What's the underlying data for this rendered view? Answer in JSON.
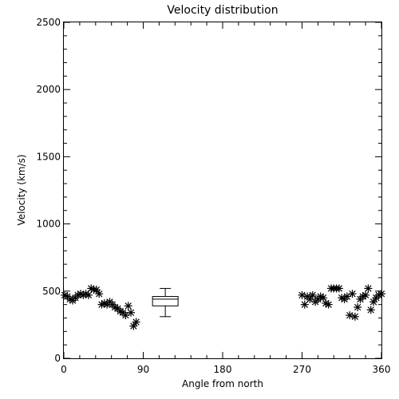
{
  "chart_data": {
    "type": "scatter",
    "title": "Velocity distribution",
    "xlabel": "Angle from north",
    "ylabel": "Velocity (km/s)",
    "xlim": [
      0,
      360
    ],
    "ylim": [
      0,
      2500
    ],
    "xticks": [
      0,
      90,
      180,
      270,
      360
    ],
    "yticks": [
      0,
      500,
      1000,
      1500,
      2000,
      2500
    ],
    "grid": false,
    "marker": "asterisk",
    "color": "#000000",
    "points": [
      [
        1,
        470
      ],
      [
        4,
        460
      ],
      [
        7,
        440
      ],
      [
        10,
        430
      ],
      [
        13,
        450
      ],
      [
        16,
        470
      ],
      [
        19,
        480
      ],
      [
        22,
        470
      ],
      [
        25,
        480
      ],
      [
        28,
        470
      ],
      [
        31,
        520
      ],
      [
        34,
        510
      ],
      [
        37,
        510
      ],
      [
        40,
        480
      ],
      [
        43,
        400
      ],
      [
        46,
        410
      ],
      [
        49,
        400
      ],
      [
        52,
        420
      ],
      [
        55,
        400
      ],
      [
        58,
        380
      ],
      [
        61,
        370
      ],
      [
        64,
        350
      ],
      [
        67,
        340
      ],
      [
        70,
        320
      ],
      [
        73,
        390
      ],
      [
        76,
        340
      ],
      [
        79,
        240
      ],
      [
        82,
        270
      ],
      [
        270,
        470
      ],
      [
        273,
        400
      ],
      [
        276,
        460
      ],
      [
        279,
        440
      ],
      [
        282,
        470
      ],
      [
        285,
        420
      ],
      [
        288,
        440
      ],
      [
        291,
        460
      ],
      [
        294,
        450
      ],
      [
        297,
        410
      ],
      [
        300,
        400
      ],
      [
        303,
        520
      ],
      [
        306,
        520
      ],
      [
        309,
        520
      ],
      [
        312,
        520
      ],
      [
        315,
        450
      ],
      [
        318,
        440
      ],
      [
        321,
        460
      ],
      [
        324,
        320
      ],
      [
        327,
        480
      ],
      [
        330,
        310
      ],
      [
        333,
        380
      ],
      [
        336,
        440
      ],
      [
        339,
        460
      ],
      [
        342,
        470
      ],
      [
        345,
        520
      ],
      [
        348,
        360
      ],
      [
        351,
        420
      ],
      [
        354,
        450
      ],
      [
        357,
        470
      ],
      [
        360,
        480
      ]
    ],
    "boxplot": {
      "x": 115,
      "min": 310,
      "q1": 390,
      "median": 440,
      "q3": 460,
      "max": 520
    }
  }
}
